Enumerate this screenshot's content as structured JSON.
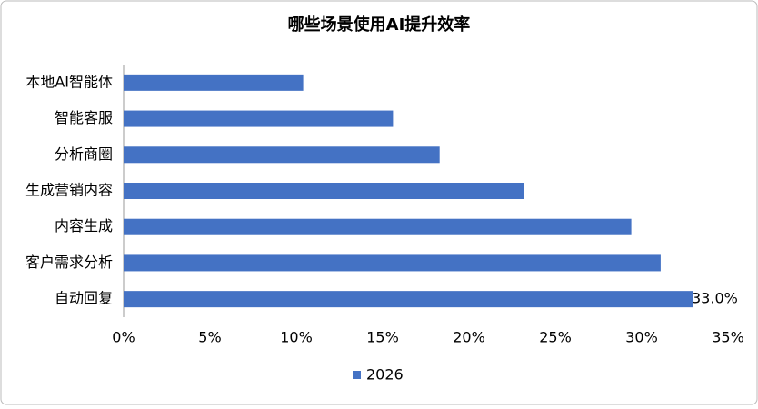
{
  "chart_data": {
    "type": "hbar",
    "title": "哪些场景使用AI提升效率",
    "categories": [
      "本地AI智能体",
      "智能客服",
      "分析商圈",
      "生成营销内容",
      "内容生成",
      "客户需求分析",
      "自动回复"
    ],
    "series": [
      {
        "name": "2026",
        "color": "#4472c4",
        "values": [
          10.4,
          15.6,
          18.3,
          23.2,
          29.4,
          31.1,
          33.0
        ],
        "value_labels": [
          null,
          null,
          null,
          null,
          null,
          null,
          "33.0%"
        ]
      }
    ],
    "xlim": [
      0,
      35
    ],
    "xticks": [
      {
        "value": 0,
        "label": "0%"
      },
      {
        "value": 5,
        "label": "5%"
      },
      {
        "value": 10,
        "label": "10%"
      },
      {
        "value": 15,
        "label": "15%"
      },
      {
        "value": 20,
        "label": "20%"
      },
      {
        "value": 25,
        "label": "25%"
      },
      {
        "value": 30,
        "label": "30%"
      },
      {
        "value": 35,
        "label": "35%"
      }
    ],
    "grid": false,
    "legend": "bottom"
  }
}
